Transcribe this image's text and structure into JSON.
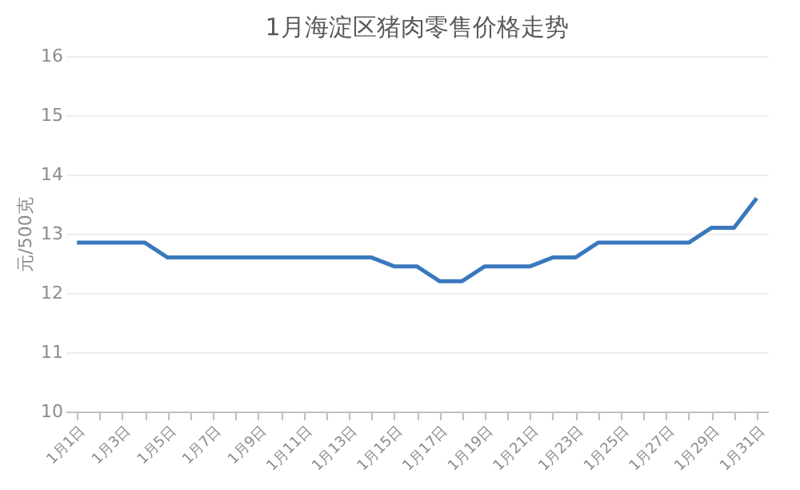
{
  "chart_data": {
    "type": "line",
    "title": "1月海淀区猪肉零售价格走势",
    "ylabel": "元/500克",
    "categories": [
      "1月1日",
      null,
      "1月3日",
      null,
      "1月5日",
      null,
      "1月7日",
      null,
      "1月9日",
      null,
      "1月11日",
      null,
      "1月13日",
      null,
      "1月15日",
      null,
      "1月17日",
      null,
      "1月19日",
      null,
      "1月21日",
      null,
      "1月23日",
      null,
      "1月25日",
      null,
      "1月27日",
      null,
      "1月29日",
      null,
      "1月31日"
    ],
    "series": [
      {
        "color": "#3a78bd",
        "values": [
          12.85,
          12.85,
          12.85,
          12.85,
          12.6,
          12.6,
          12.6,
          12.6,
          12.6,
          12.6,
          12.6,
          12.6,
          12.6,
          12.6,
          12.45,
          12.45,
          12.2,
          12.2,
          12.45,
          12.45,
          12.45,
          12.6,
          12.6,
          12.85,
          12.85,
          12.85,
          12.85,
          12.85,
          13.1,
          13.1,
          13.6
        ]
      }
    ],
    "ylim": [
      10,
      16
    ],
    "yticks": [
      10,
      11,
      12,
      13,
      14,
      15,
      16
    ],
    "grid": "y",
    "marker": "none",
    "line_style": "solid"
  }
}
